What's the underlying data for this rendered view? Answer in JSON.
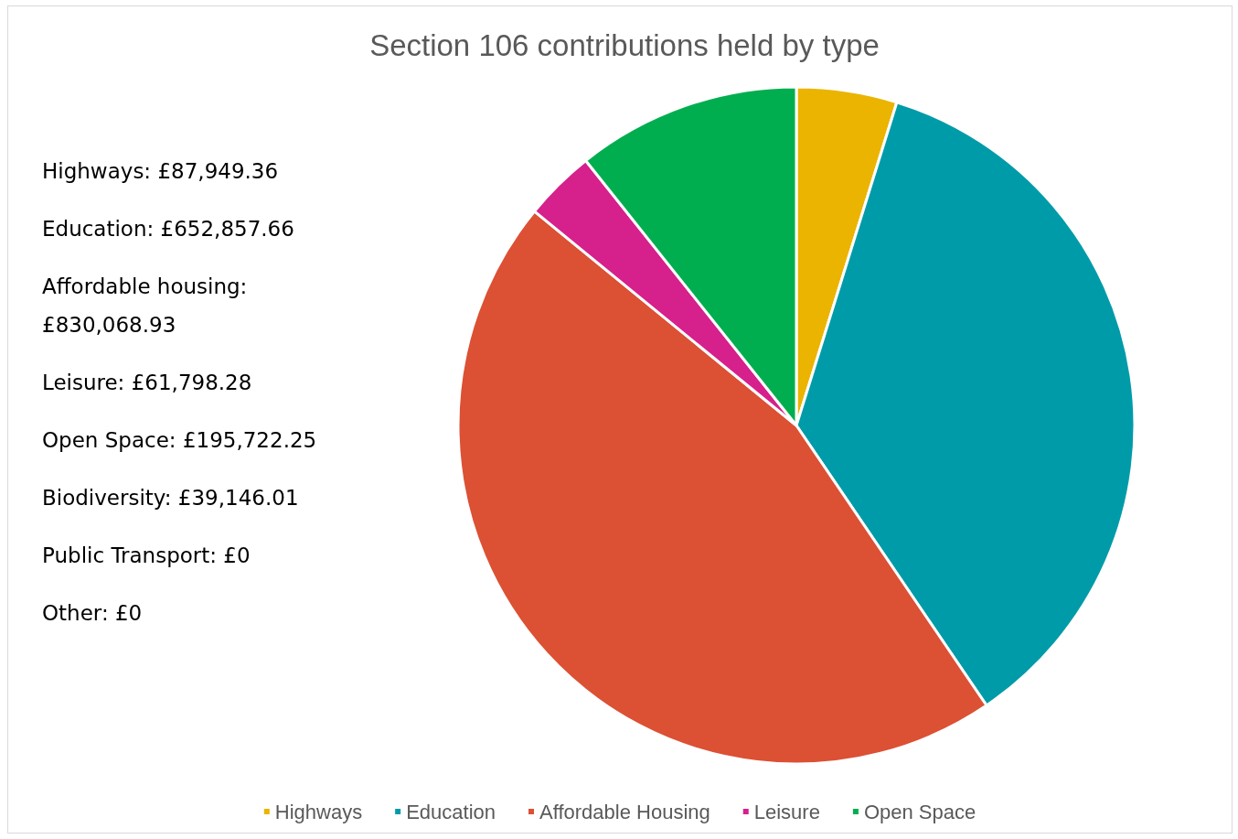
{
  "chart_data": {
    "type": "pie",
    "title": "Section 106 contributions held by type",
    "categories": [
      "Highways",
      "Education",
      "Affordable Housing",
      "Leisure",
      "Open Space"
    ],
    "values": [
      4.8,
      35.7,
      45.4,
      3.4,
      10.7
    ],
    "colors": [
      "#ebb400",
      "#009ba9",
      "#dc5034",
      "#d6208b",
      "#00ae4f"
    ],
    "legend": "bottom",
    "annotations": [
      "Highways: £87,949.36",
      "Education: £652,857.66",
      "Affordable housing: £830,068.93",
      "Leisure: £61,798.28",
      "Open Space: £195,722.25",
      "Biodiversity: £39,146.01",
      "Public Transport: £0",
      "Other: £0"
    ]
  }
}
